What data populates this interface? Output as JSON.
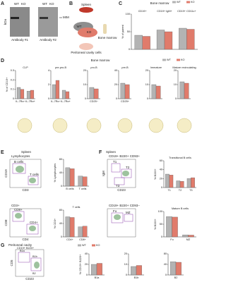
{
  "panels": {
    "A": {
      "letter": "A",
      "lanes": [
        "WT",
        "KO"
      ],
      "band": "MIM",
      "blots": [
        "Antibody #1",
        "Antibody #2"
      ],
      "unit": "kDa"
    },
    "B": {
      "letter": "B",
      "labels": [
        "Spleen",
        "WT",
        "KO",
        "Bone marrow",
        "Peritoneal cavity cells"
      ]
    },
    "C": {
      "letter": "C",
      "title": "Bone marrow"
    },
    "D": {
      "letter": "D",
      "title": "Bone marrow"
    },
    "E": {
      "letter": "E",
      "title": "Spleen",
      "plots": [
        "Lymphocytes",
        "B cells",
        "T cells",
        "CD19",
        "CD3",
        "CD3+",
        "CD4+",
        "CD8+",
        "CD8",
        "CD4"
      ]
    },
    "F": {
      "letter": "F",
      "title": "Spleen",
      "plots": [
        "CD19+ B220+ CD93+",
        "T1",
        "T2",
        "T3",
        "IgM",
        "CD23",
        "CD19+ B220+ CD93−",
        "Fo",
        "MZ"
      ]
    },
    "G": {
      "letter": "G",
      "title": "Peritoneal cavity",
      "plots": [
        "CD19+ B220+",
        "B1a",
        "B1b",
        "B2",
        "CD5",
        "CD23"
      ]
    }
  },
  "chart_data": [
    {
      "type": "bar",
      "ylabel": "% of parent",
      "categories": [
        "CD19+",
        "CD19+ IgM+",
        "CD19+ CD11c+"
      ],
      "ylim": [
        0,
        100
      ],
      "yticks": [
        0,
        50,
        100
      ],
      "series": [
        {
          "name": "WT",
          "color": "#b3b3b3",
          "values": [
            40,
            55,
            60
          ]
        },
        {
          "name": "KO",
          "color": "#e07b6b",
          "values": [
            37,
            50,
            57
          ]
        }
      ]
    },
    {
      "type": "bar",
      "title": "CLP",
      "ylabel": "% of CD19+",
      "categories": [
        "IL-7Rα−",
        "IL-7Rα+"
      ],
      "ylim": [
        0,
        0.3
      ],
      "yticks": [
        0,
        0.1,
        0.2,
        0.3
      ],
      "series": [
        {
          "name": "WT",
          "color": "#b3b3b3",
          "values": [
            0.12,
            0.08
          ]
        },
        {
          "name": "KO",
          "color": "#e07b6b",
          "values": [
            0.1,
            0.09
          ]
        }
      ]
    },
    {
      "type": "bar",
      "title": "pre-pro-B",
      "categories": [
        "IL-7Rα−",
        "IL-7Rα+"
      ],
      "ylim": [
        0,
        4
      ],
      "yticks": [
        0,
        2,
        4
      ],
      "series": [
        {
          "color": "#b3b3b3",
          "values": [
            2,
            1.2
          ]
        },
        {
          "color": "#e07b6b",
          "values": [
            2.6,
            1
          ]
        }
      ]
    },
    {
      "type": "bar",
      "title": "pro-B",
      "categories": [
        "CD25−"
      ],
      "ylim": [
        0,
        20
      ],
      "yticks": [
        0,
        10,
        20
      ],
      "series": [
        {
          "color": "#b3b3b3",
          "values": [
            8
          ]
        },
        {
          "color": "#e07b6b",
          "values": [
            7
          ]
        }
      ]
    },
    {
      "type": "bar",
      "title": "pre-B",
      "categories": [
        "CD25+"
      ],
      "ylim": [
        0,
        40
      ],
      "yticks": [
        0,
        20,
        40
      ],
      "series": [
        {
          "color": "#b3b3b3",
          "values": [
            22
          ]
        },
        {
          "color": "#e07b6b",
          "values": [
            20
          ]
        }
      ]
    },
    {
      "type": "bar",
      "title": "Immature",
      "categories": [
        null
      ],
      "ylim": [
        0,
        20
      ],
      "yticks": [
        0,
        10,
        20
      ],
      "series": [
        {
          "color": "#b3b3b3",
          "values": [
            10
          ]
        },
        {
          "color": "#e07b6b",
          "values": [
            9
          ]
        }
      ]
    },
    {
      "type": "bar",
      "title": "Mature recirculating",
      "categories": [
        null
      ],
      "ylim": [
        0,
        20
      ],
      "yticks": [
        0,
        10,
        20
      ],
      "series": [
        {
          "color": "#b3b3b3",
          "values": [
            12
          ]
        },
        {
          "color": "#e07b6b",
          "values": [
            11
          ]
        }
      ]
    },
    {
      "type": "bar",
      "ylabel": "% Lymphocytes",
      "categories": [
        "B cells",
        "T cells"
      ],
      "ylim": [
        0,
        80
      ],
      "yticks": [
        0,
        40,
        80
      ],
      "series": [
        {
          "color": "#b3b3b3",
          "values": [
            55,
            30
          ]
        },
        {
          "color": "#e07b6b",
          "values": [
            52,
            28
          ]
        }
      ]
    },
    {
      "type": "bar",
      "title": "T cells",
      "ylabel": "% CD3+",
      "categories": [
        "CD4+",
        "CD8+"
      ],
      "ylim": [
        0,
        80
      ],
      "yticks": [
        0,
        40,
        80
      ],
      "series": [
        {
          "color": "#b3b3b3",
          "values": [
            60,
            30
          ]
        },
        {
          "color": "#e07b6b",
          "values": [
            58,
            32
          ]
        }
      ]
    },
    {
      "type": "bar",
      "title": "Transitional B cells",
      "ylabel": "% B220+",
      "categories": [
        "T1",
        "T2",
        "T3"
      ],
      "ylim": [
        0,
        60
      ],
      "yticks": [
        0,
        20,
        40,
        60
      ],
      "series": [
        {
          "color": "#b3b3b3",
          "values": [
            30,
            15,
            20
          ]
        },
        {
          "color": "#e07b6b",
          "values": [
            28,
            14,
            22
          ]
        }
      ]
    },
    {
      "type": "bar",
      "title": "Mature B cells",
      "ylabel": "% B220+",
      "categories": [
        "Fo",
        "MZ"
      ],
      "ylim": [
        0,
        100
      ],
      "yticks": [
        0,
        50,
        100
      ],
      "series": [
        {
          "color": "#b3b3b3",
          "values": [
            80,
            8
          ]
        },
        {
          "color": "#e07b6b",
          "values": [
            78,
            7
          ]
        }
      ]
    },
    {
      "type": "bar",
      "ylabel": "% CD19+ B220+",
      "categories": [
        "B1a"
      ],
      "ylim": [
        0,
        40
      ],
      "yticks": [
        0,
        20,
        40
      ],
      "series": [
        {
          "name": "WT",
          "color": "#b3b3b3",
          "values": [
            20
          ]
        },
        {
          "name": "KO",
          "color": "#e07b6b",
          "values": [
            22
          ]
        }
      ]
    },
    {
      "type": "bar",
      "categories": [
        "B1b"
      ],
      "ylim": [
        0,
        20
      ],
      "yticks": [
        0,
        10,
        20
      ],
      "series": [
        {
          "color": "#b3b3b3",
          "values": [
            8
          ]
        },
        {
          "color": "#e07b6b",
          "values": [
            9
          ]
        }
      ]
    },
    {
      "type": "bar",
      "categories": [
        "B2"
      ],
      "ylim": [
        0,
        80
      ],
      "yticks": [
        0,
        40,
        80
      ],
      "series": [
        {
          "color": "#b3b3b3",
          "values": [
            50
          ]
        },
        {
          "color": "#e07b6b",
          "values": [
            48
          ]
        }
      ]
    }
  ]
}
